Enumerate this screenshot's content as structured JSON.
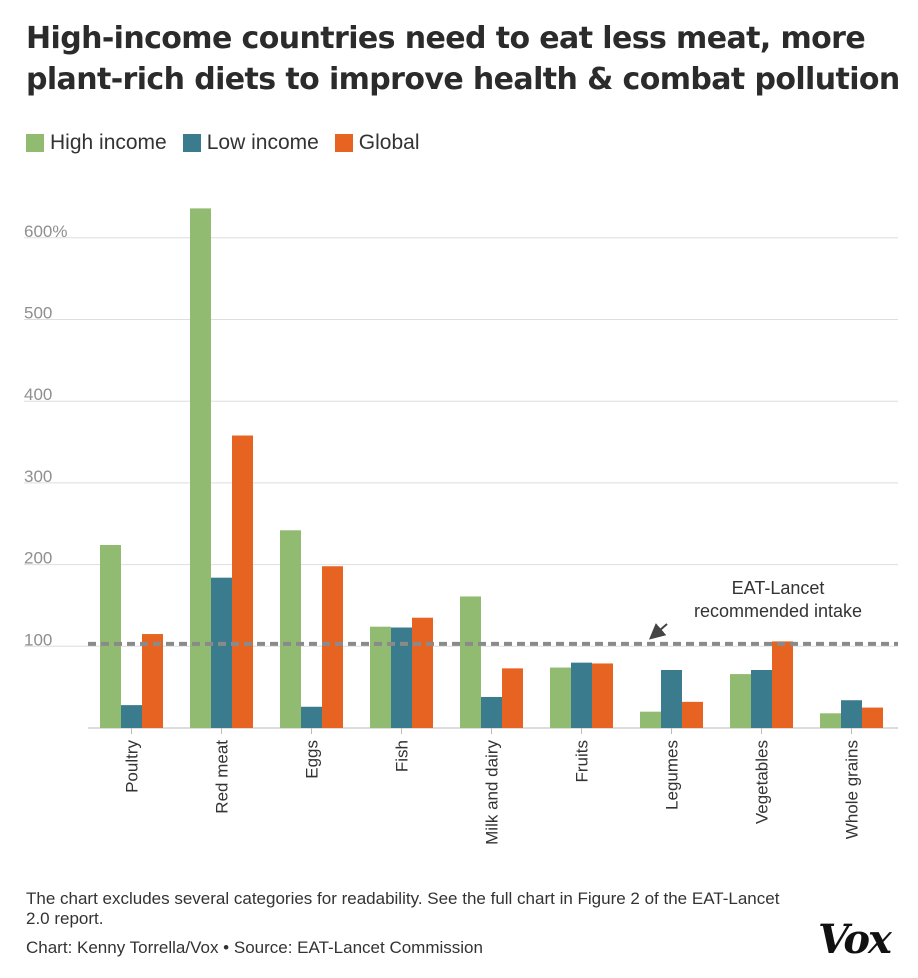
{
  "title": "High-income countries need to eat less meat, more plant-rich diets to improve health & combat pollution",
  "legend": [
    {
      "label": "High income",
      "color": "#92bb72"
    },
    {
      "label": "Low income",
      "color": "#3a7b8e"
    },
    {
      "label": "Global",
      "color": "#e76322"
    }
  ],
  "chart_data": {
    "type": "bar",
    "categories": [
      "Poultry",
      "Red meat",
      "Eggs",
      "Fish",
      "Milk and dairy",
      "Fruits",
      "Legumes",
      "Vegetables",
      "Whole grains"
    ],
    "series": [
      {
        "name": "High income",
        "color": "#92bb72",
        "values": [
          224,
          636,
          242,
          124,
          161,
          74,
          20,
          66,
          18
        ]
      },
      {
        "name": "Low income",
        "color": "#3a7b8e",
        "values": [
          28,
          184,
          26,
          123,
          38,
          80,
          71,
          71,
          34
        ]
      },
      {
        "name": "Global",
        "color": "#e76322",
        "values": [
          115,
          358,
          198,
          135,
          73,
          79,
          32,
          106,
          25
        ]
      }
    ],
    "ylim": [
      0,
      650
    ],
    "yticks": [
      100,
      200,
      300,
      400,
      500,
      600
    ],
    "ytick_labels": [
      "100",
      "200",
      "300",
      "400",
      "500",
      "600%"
    ],
    "reference_line": {
      "value": 103,
      "label_lines": [
        "EAT-Lancet",
        "recommended intake"
      ]
    },
    "grid": true
  },
  "note": "The chart excludes several categories for readability. See the full chart in Figure 2 of the EAT-Lancet 2.0 report.",
  "credit": "Chart: Kenny Torrella/Vox • Source: EAT-Lancet Commission",
  "logo": "Vox"
}
